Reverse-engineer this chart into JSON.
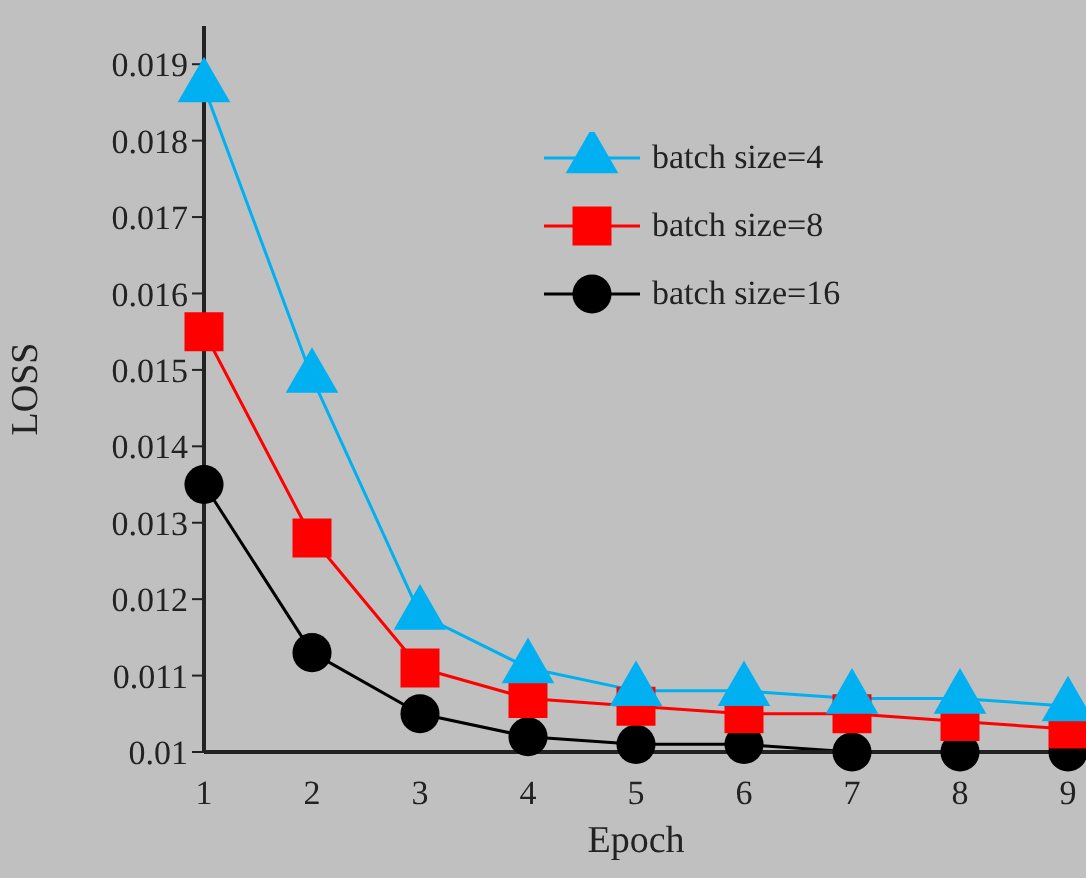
{
  "chart_data": {
    "type": "line",
    "xlabel": "Epoch",
    "ylabel": "LOSS",
    "x": [
      1,
      2,
      3,
      4,
      5,
      6,
      7,
      8,
      9
    ],
    "xlim": [
      1,
      9
    ],
    "xticks": [
      1,
      2,
      3,
      4,
      5,
      6,
      7,
      8,
      9
    ],
    "ylim": [
      0.01,
      0.0195
    ],
    "yticks": [
      0.01,
      0.011,
      0.012,
      0.013,
      0.014,
      0.015,
      0.016,
      0.017,
      0.018,
      0.019
    ],
    "grid": false,
    "legend": "top right",
    "line_style": "solid",
    "series": [
      {
        "name": "batch size=4",
        "color": "#00b0f0",
        "marker": "triangle",
        "values": [
          0.0187,
          0.0149,
          0.0118,
          0.0111,
          0.0108,
          0.0108,
          0.0107,
          0.0107,
          0.0106
        ]
      },
      {
        "name": "batch size=8",
        "color": "#ff0000",
        "marker": "square",
        "values": [
          0.0155,
          0.0128,
          0.0111,
          0.0107,
          0.0106,
          0.0105,
          0.0105,
          0.0104,
          0.0103
        ]
      },
      {
        "name": "batch size=16",
        "color": "#000000",
        "marker": "circle",
        "values": [
          0.0135,
          0.0113,
          0.0105,
          0.0102,
          0.0101,
          0.0101,
          0.01,
          0.01,
          0.01
        ]
      }
    ]
  }
}
